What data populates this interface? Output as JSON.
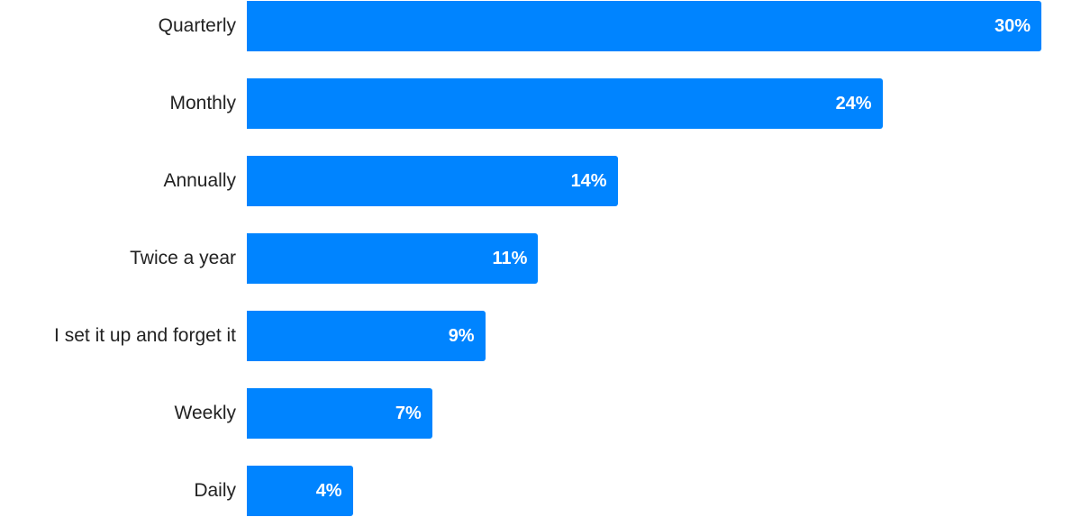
{
  "chart_data": {
    "type": "bar",
    "orientation": "horizontal",
    "categories": [
      "Quarterly",
      "Monthly",
      "Annually",
      "Twice a year",
      "I set it up and forget it",
      "Weekly",
      "Daily"
    ],
    "values": [
      30,
      24,
      14,
      11,
      9,
      7,
      4
    ],
    "value_labels": [
      "30%",
      "24%",
      "14%",
      "11%",
      "9%",
      "7%",
      "4%"
    ],
    "color": "#0084ff"
  }
}
